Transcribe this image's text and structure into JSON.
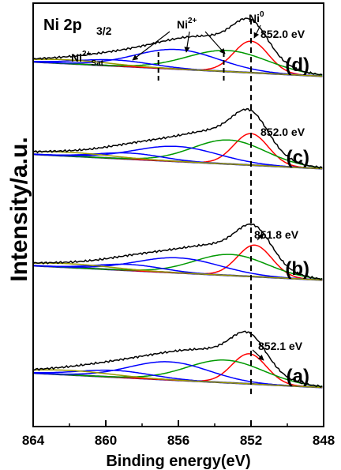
{
  "chart_data": {
    "type": "line",
    "title": "Ni 2p",
    "title_sub": "3/2",
    "xlabel": "Binding energy(eV)",
    "ylabel": "Intensity/a.u.",
    "xlim": [
      864,
      848
    ],
    "x_reversed": true,
    "xticks": [
      864,
      860,
      856,
      852,
      848
    ],
    "y_tick_labels_shown": false,
    "grid": false,
    "annotations": {
      "ni0": "Ni",
      "ni0_sup": "0",
      "ni2": "Ni",
      "ni2_sup": "2+",
      "sat": "Ni",
      "sat_sup": "2+",
      "sat_sub": "Sat"
    },
    "reference_lines_ev": [
      852.0,
      857.1,
      853.5
    ],
    "colors": {
      "envelope": "#000000",
      "red": "#ff0000",
      "green": "#009900",
      "blue": "#0000ff",
      "satellite": "#999900",
      "background": "#00008b"
    },
    "panels": [
      {
        "label": "(d)",
        "peak_label": "852.0 eV",
        "peaks": [
          {
            "color": "red",
            "center": 852.0,
            "height": 0.42,
            "width": 0.95
          },
          {
            "color": "green",
            "center": 853.3,
            "height": 0.28,
            "width": 2.2
          },
          {
            "color": "blue",
            "center": 856.1,
            "height": 0.26,
            "width": 2.3
          },
          {
            "color": "blue",
            "center": 859.5,
            "height": 0.08,
            "width": 2.0
          },
          {
            "color": "satellite",
            "center": 862.0,
            "height": 0.05,
            "width": 2.3
          }
        ]
      },
      {
        "label": "(c)",
        "peak_label": "852.0 eV",
        "peaks": [
          {
            "color": "red",
            "center": 852.0,
            "height": 0.42,
            "width": 0.95
          },
          {
            "color": "green",
            "center": 853.2,
            "height": 0.32,
            "width": 2.0
          },
          {
            "color": "blue",
            "center": 856.1,
            "height": 0.2,
            "width": 2.3
          },
          {
            "color": "blue",
            "center": 858.7,
            "height": 0.08,
            "width": 1.8
          },
          {
            "color": "satellite",
            "center": 862.0,
            "height": 0.05,
            "width": 2.3
          }
        ]
      },
      {
        "label": "(b)",
        "peak_label": "851.8 eV",
        "peaks": [
          {
            "color": "red",
            "center": 851.8,
            "height": 0.42,
            "width": 0.95
          },
          {
            "color": "green",
            "center": 853.1,
            "height": 0.28,
            "width": 2.0
          },
          {
            "color": "blue",
            "center": 856.0,
            "height": 0.2,
            "width": 2.3
          },
          {
            "color": "blue",
            "center": 858.7,
            "height": 0.08,
            "width": 1.8
          },
          {
            "color": "satellite",
            "center": 862.0,
            "height": 0.05,
            "width": 2.3
          }
        ]
      },
      {
        "label": "(a)",
        "peak_label": "852.1 eV",
        "peaks": [
          {
            "color": "red",
            "center": 852.1,
            "height": 0.4,
            "width": 0.95
          },
          {
            "color": "green",
            "center": 853.4,
            "height": 0.3,
            "width": 2.1
          },
          {
            "color": "blue",
            "center": 856.5,
            "height": 0.24,
            "width": 2.2
          },
          {
            "color": "blue",
            "center": 859.5,
            "height": 0.09,
            "width": 2.0
          },
          {
            "color": "satellite",
            "center": 862.0,
            "height": 0.06,
            "width": 2.3
          }
        ]
      }
    ]
  }
}
